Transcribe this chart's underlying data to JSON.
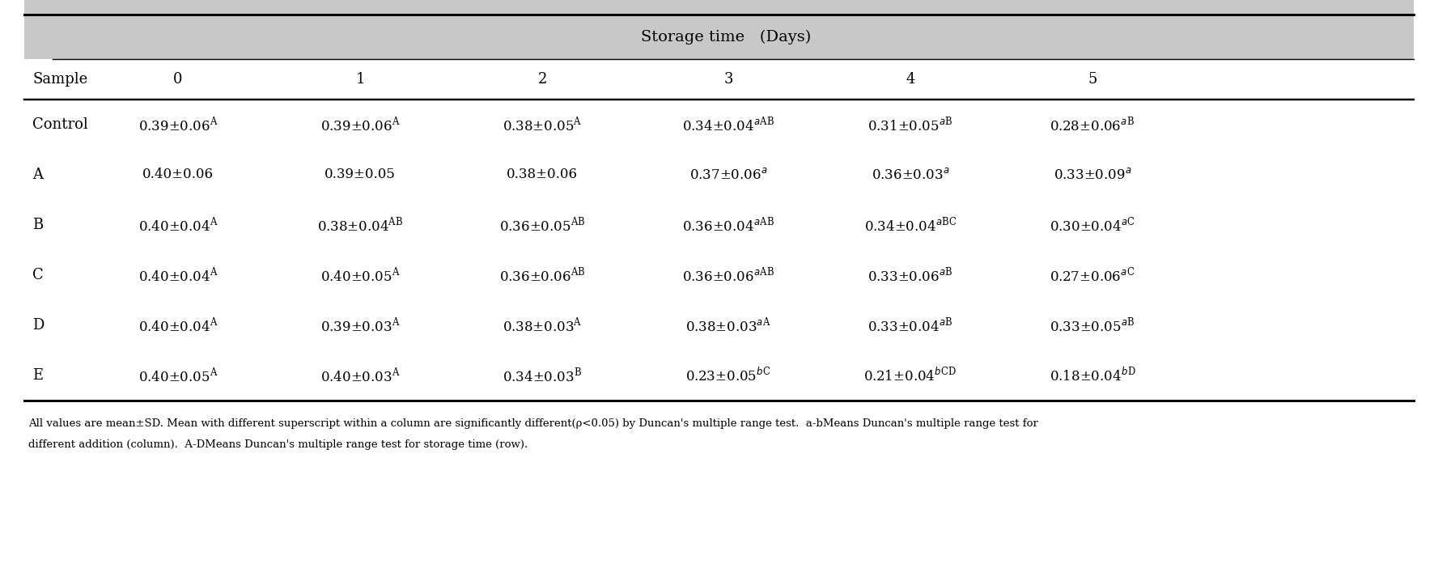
{
  "title": "Storage time   (Days)",
  "col_header_label": "Sample",
  "col_headers": [
    "0",
    "1",
    "2",
    "3",
    "4",
    "5"
  ],
  "row_labels": [
    "Control",
    "A",
    "B",
    "C",
    "D",
    "E"
  ],
  "cells_structured": [
    [
      [
        "0.39±0.06",
        "",
        "A"
      ],
      [
        "0.39±0.06",
        "",
        "A"
      ],
      [
        "0.38±0.05",
        "",
        "A"
      ],
      [
        "0.34±0.04",
        "a",
        "AB"
      ],
      [
        "0.31±0.05",
        "a",
        "B"
      ],
      [
        "0.28±0.06",
        "a",
        "B"
      ]
    ],
    [
      [
        "0.40±0.06",
        "",
        ""
      ],
      [
        "0.39±0.05",
        "",
        ""
      ],
      [
        "0.38±0.06",
        "",
        ""
      ],
      [
        "0.37±0.06",
        "a",
        ""
      ],
      [
        "0.36±0.03",
        "a",
        ""
      ],
      [
        "0.33±0.09",
        "a",
        ""
      ]
    ],
    [
      [
        "0.40±0.04",
        "",
        "A"
      ],
      [
        "0.38±0.04",
        "",
        "AB"
      ],
      [
        "0.36±0.05",
        "",
        "AB"
      ],
      [
        "0.36±0.04",
        "a",
        "AB"
      ],
      [
        "0.34±0.04",
        "a",
        "BC"
      ],
      [
        "0.30±0.04",
        "a",
        "C"
      ]
    ],
    [
      [
        "0.40±0.04",
        "",
        "A"
      ],
      [
        "0.40±0.05",
        "",
        "A"
      ],
      [
        "0.36±0.06",
        "",
        "AB"
      ],
      [
        "0.36±0.06",
        "a",
        "AB"
      ],
      [
        "0.33±0.06",
        "a",
        "B"
      ],
      [
        "0.27±0.06",
        "a",
        "C"
      ]
    ],
    [
      [
        "0.40±0.04",
        "",
        "A"
      ],
      [
        "0.39±0.03",
        "",
        "A"
      ],
      [
        "0.38±0.03",
        "",
        "A"
      ],
      [
        "0.38±0.03",
        "a",
        "A"
      ],
      [
        "0.33±0.04",
        "a",
        "B"
      ],
      [
        "0.33±0.05",
        "a",
        "B"
      ]
    ],
    [
      [
        "0.40±0.05",
        "",
        "A"
      ],
      [
        "0.40±0.03",
        "",
        "A"
      ],
      [
        "0.34±0.03",
        "",
        "B"
      ],
      [
        "0.23±0.05",
        "b",
        "C"
      ],
      [
        "0.21±0.04",
        "b",
        "CD"
      ],
      [
        "0.18±0.04",
        "b",
        "D"
      ]
    ]
  ],
  "footnote_line1": "All values are mean±SD. Mean with different superscript within a column are significantly different(ρ<0.05) by Duncan's multiple range test.  a-bMeans Duncan's multiple range test for",
  "footnote_line2": "different addition (column).  A-DMeans Duncan's multiple range test for storage time (row).",
  "header_bg": "#c8c8c8",
  "body_bg": "#ffffff",
  "fig_bg": "#ffffff"
}
